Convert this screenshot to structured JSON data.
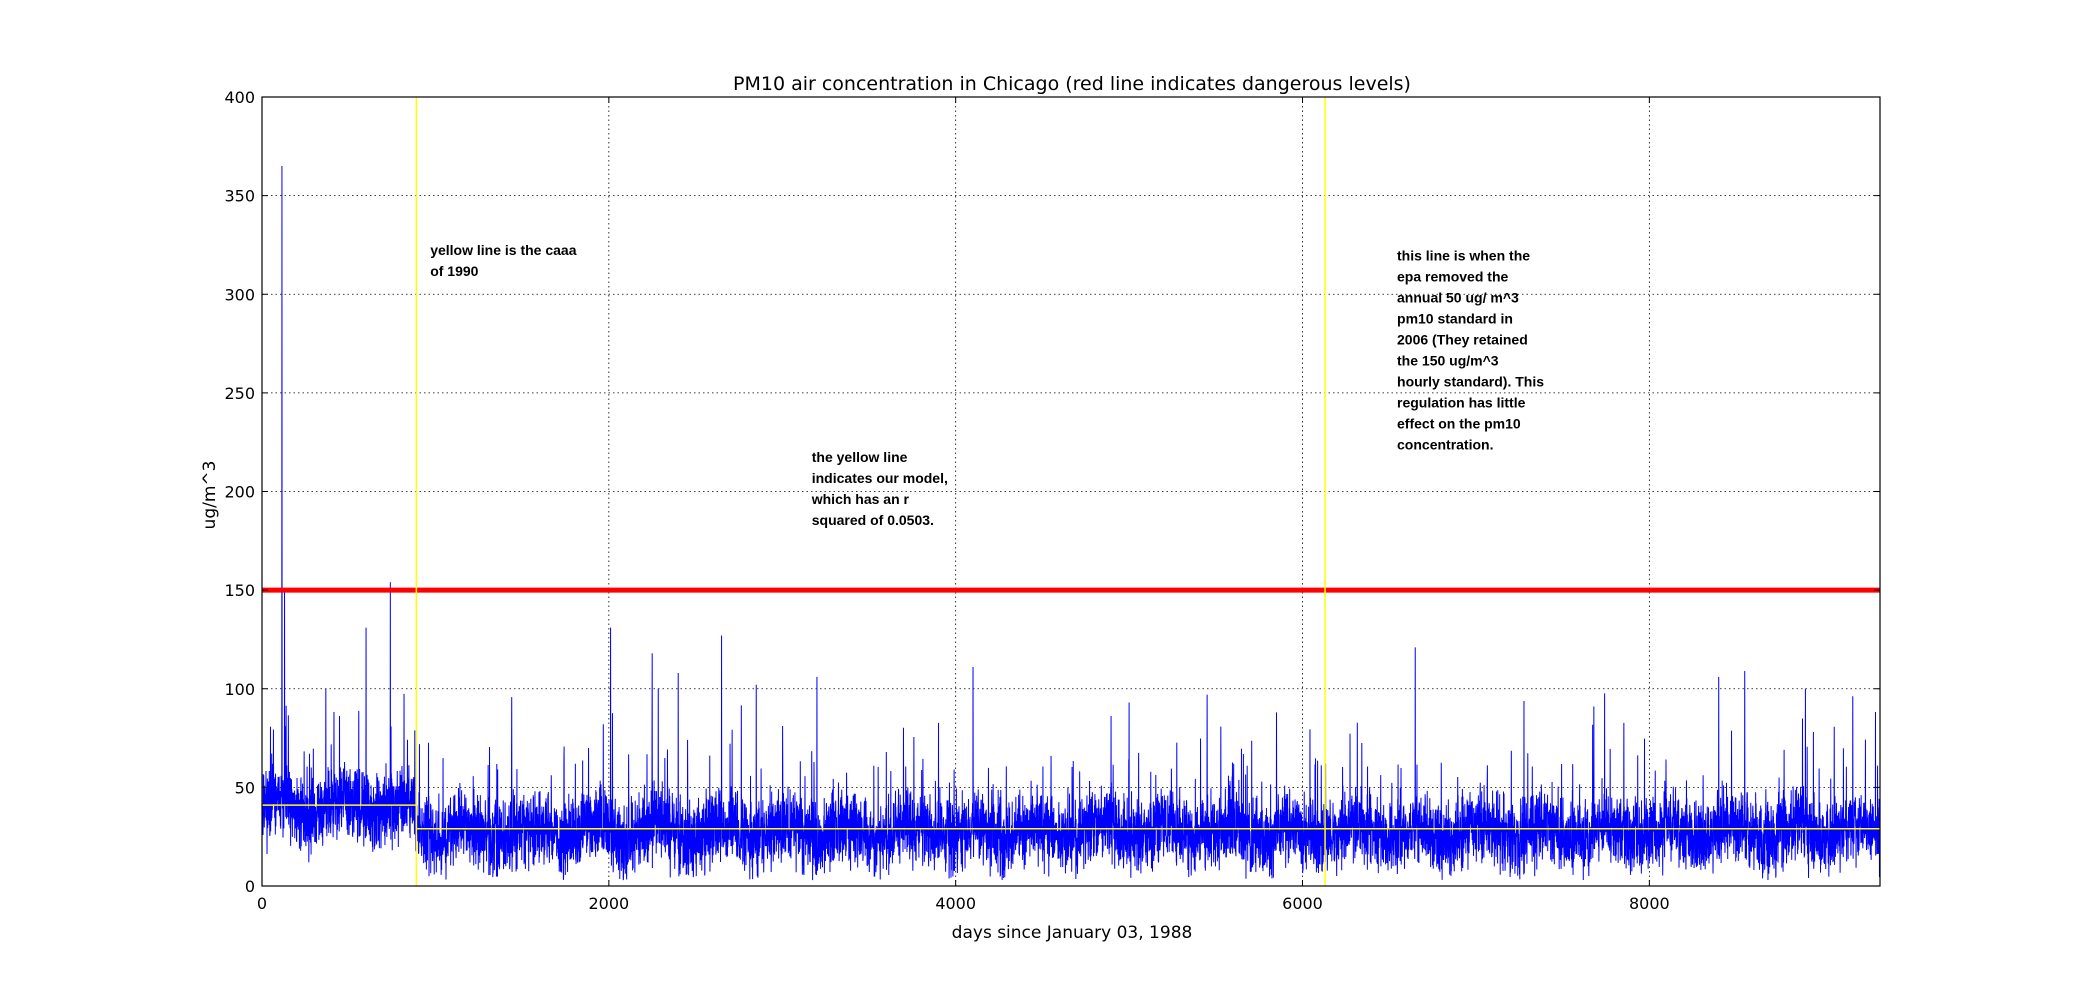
{
  "chart_data": {
    "type": "line",
    "title": "PM10 air concentration in Chicago (red line indicates dangerous levels)",
    "xlabel": "days since January 03, 1988",
    "ylabel": "ug/m^3",
    "xlim": [
      0,
      9330
    ],
    "ylim": [
      0,
      400
    ],
    "x_ticks": [
      0,
      2000,
      4000,
      6000,
      8000
    ],
    "y_ticks": [
      0,
      50,
      100,
      150,
      200,
      250,
      300,
      350,
      400
    ],
    "grid": true,
    "colors": {
      "series": "#0000ff",
      "danger": "#ff0000",
      "model": "#ffff00",
      "markers": "#ffff00"
    },
    "danger_level": 150,
    "vertical_markers": [
      890,
      6130
    ],
    "model": [
      {
        "from": 0,
        "to": 890,
        "value": 41
      },
      {
        "from": 890,
        "to": 9330,
        "value": 29
      }
    ],
    "peaks": [
      {
        "x": 115,
        "y": 365
      },
      {
        "x": 130,
        "y": 150
      },
      {
        "x": 600,
        "y": 131
      },
      {
        "x": 740,
        "y": 154
      },
      {
        "x": 2010,
        "y": 131
      },
      {
        "x": 2250,
        "y": 118
      },
      {
        "x": 2400,
        "y": 108
      },
      {
        "x": 2650,
        "y": 127
      },
      {
        "x": 2850,
        "y": 102
      },
      {
        "x": 3200,
        "y": 106
      },
      {
        "x": 4100,
        "y": 111
      },
      {
        "x": 5000,
        "y": 93
      },
      {
        "x": 5450,
        "y": 97
      },
      {
        "x": 5850,
        "y": 88
      },
      {
        "x": 6650,
        "y": 121
      },
      {
        "x": 7680,
        "y": 91
      },
      {
        "x": 8400,
        "y": 106
      },
      {
        "x": 8550,
        "y": 109
      },
      {
        "x": 8900,
        "y": 100
      }
    ],
    "seed": 11,
    "n_points": 9330,
    "annotations": [
      {
        "lines": [
          "yellow line is the caaa",
          "of 1990"
        ],
        "x": 970,
        "y": 320
      },
      {
        "lines": [
          "the yellow line",
          "indicates our model,",
          "which has an r",
          "squared of 0.0503."
        ],
        "x": 3170,
        "y": 215
      },
      {
        "lines": [
          "this line is when the",
          "epa removed the",
          "annual 50 ug/ m^3",
          "pm10 standard in",
          "2006 (They retained",
          "the 150 ug/m^3",
          "hourly standard). This",
          "regulation has little",
          "effect on the pm10",
          "concentration."
        ],
        "x": 6545,
        "y": 317
      }
    ]
  }
}
